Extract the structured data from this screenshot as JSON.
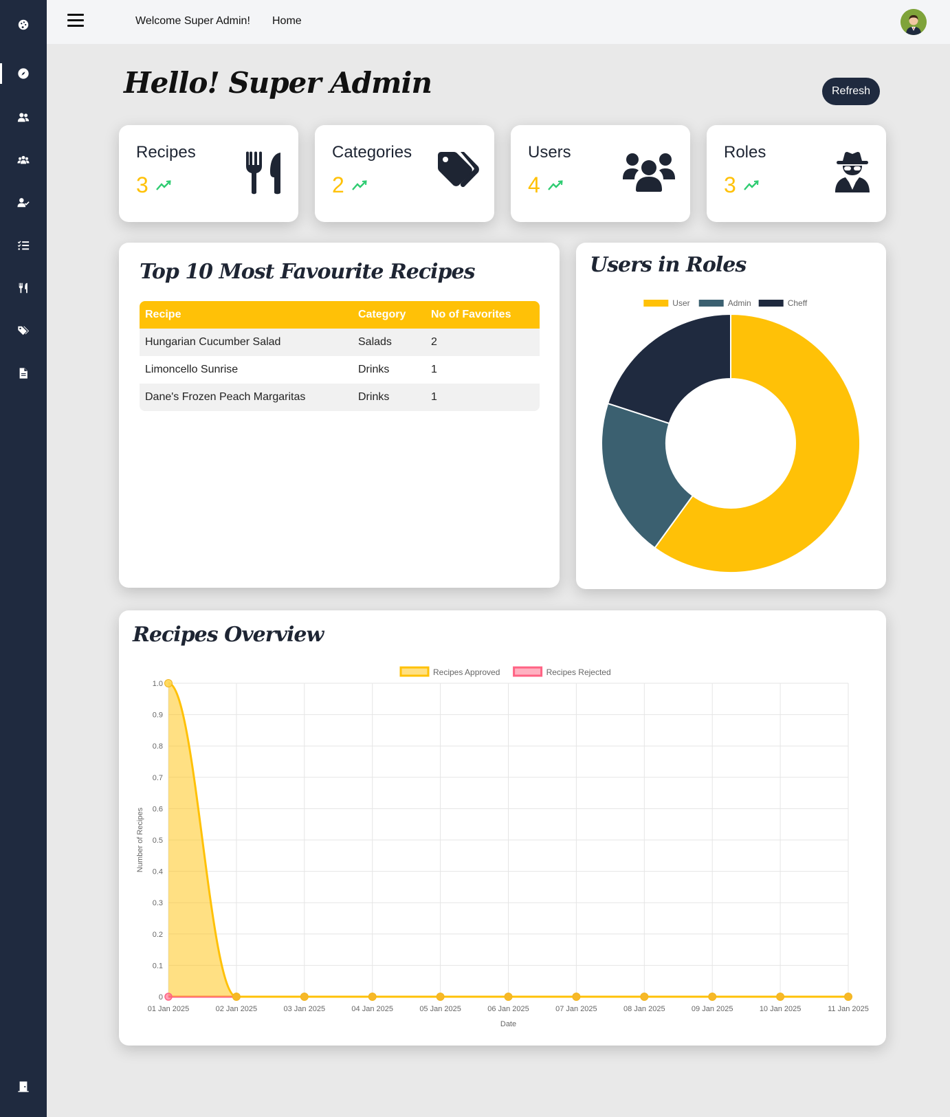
{
  "sidebar": {
    "items": [
      {
        "icon": "palette-icon"
      },
      {
        "icon": "compass-icon",
        "active": true
      },
      {
        "icon": "users-icon"
      },
      {
        "icon": "user-group-icon"
      },
      {
        "icon": "user-check-icon"
      },
      {
        "icon": "list-check-icon"
      },
      {
        "icon": "utensils-icon"
      },
      {
        "icon": "tags-icon"
      },
      {
        "icon": "file-icon"
      }
    ],
    "bottom_icon": "door-exit-icon"
  },
  "topbar": {
    "welcome": "Welcome Super Admin!",
    "home": "Home"
  },
  "greeting": "Hello! Super Admin",
  "refresh_label": "Refresh",
  "stats": [
    {
      "label": "Recipes",
      "value": "3",
      "icon": "utensils-icon"
    },
    {
      "label": "Categories",
      "value": "2",
      "icon": "tags-icon"
    },
    {
      "label": "Users",
      "value": "4",
      "icon": "users-icon"
    },
    {
      "label": "Roles",
      "value": "3",
      "icon": "user-secret-icon"
    }
  ],
  "colors": {
    "accent": "#ffc107",
    "dark": "#1f2a3f",
    "slate": "#3b6070",
    "trend": "#2ecc71",
    "rejected": "#ff6384"
  },
  "favorites": {
    "title": "Top 10 Most Favourite Recipes",
    "columns": [
      "Recipe",
      "Category",
      "No of Favorites"
    ],
    "rows": [
      [
        "Hungarian Cucumber Salad",
        "Salads",
        "2"
      ],
      [
        "Limoncello Sunrise",
        "Drinks",
        "1"
      ],
      [
        "Dane's Frozen Peach Margaritas",
        "Drinks",
        "1"
      ]
    ]
  },
  "roles_panel_title": "Users in Roles",
  "overview_panel_title": "Recipes Overview",
  "chart_data": [
    {
      "type": "pie",
      "variant": "doughnut",
      "title": "Users in Roles",
      "labels": [
        "User",
        "Admin",
        "Cheff"
      ],
      "values": [
        3,
        1,
        1
      ],
      "colors": [
        "#ffc107",
        "#3b6070",
        "#1f2a3f"
      ],
      "legend": "top"
    },
    {
      "type": "area",
      "title": "Recipes Overview",
      "xlabel": "Date",
      "ylabel": "Number of Recipes",
      "x": [
        "01 Jan 2025",
        "02 Jan 2025",
        "03 Jan 2025",
        "04 Jan 2025",
        "05 Jan 2025",
        "06 Jan 2025",
        "07 Jan 2025",
        "08 Jan 2025",
        "09 Jan 2025",
        "10 Jan 2025",
        "11 Jan 2025"
      ],
      "ylim": [
        0,
        1
      ],
      "yticks": [
        "0",
        "0.1",
        "0.2",
        "0.3",
        "0.4",
        "0.5",
        "0.6",
        "0.7",
        "0.8",
        "0.9",
        "1.0"
      ],
      "grid": true,
      "legend": "top",
      "series": [
        {
          "name": "Recipes Approved",
          "values": [
            1,
            0,
            0,
            0,
            0,
            0,
            0,
            0,
            0,
            0,
            0
          ],
          "color": "#ffc107",
          "fill": true
        },
        {
          "name": "Recipes Rejected",
          "values": [
            0,
            0,
            0,
            0,
            0,
            0,
            0,
            0,
            0,
            0,
            0
          ],
          "color": "#ff6384",
          "fill": false
        }
      ]
    }
  ]
}
